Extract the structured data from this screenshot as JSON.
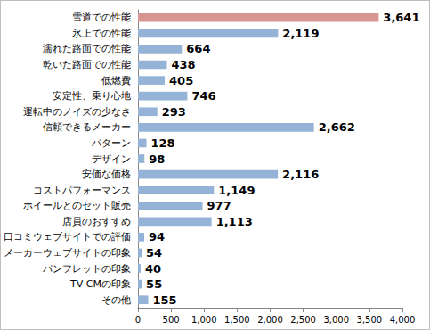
{
  "chart_data": {
    "type": "bar",
    "orientation": "horizontal",
    "categories": [
      "雪道での性能",
      "氷上での性能",
      "濡れた路面での性能",
      "乾いた路面での性能",
      "低燃費",
      "安定性、乗り心地",
      "運転中のノイズの少なさ",
      "信頼できるメーカー",
      "パターン",
      "デザイン",
      "安価な価格",
      "コストパフォーマンス",
      "ホイールとのセット販売",
      "店員のおすすめ",
      "口コミウェブサイトでの評価",
      "メーカーウェブサイトの印象",
      "パンフレットの印象",
      "TV CMの印象",
      "その他"
    ],
    "values": [
      3641,
      2119,
      664,
      438,
      405,
      746,
      293,
      2662,
      128,
      98,
      2116,
      1149,
      977,
      1113,
      94,
      54,
      40,
      55,
      155
    ],
    "value_labels": [
      "3,641",
      "2,119",
      "664",
      "438",
      "405",
      "746",
      "293",
      "2,662",
      "128",
      "98",
      "2,116",
      "1,149",
      "977",
      "1,113",
      "94",
      "54",
      "40",
      "55",
      "155"
    ],
    "colors": [
      "#d99594",
      "#95b3d7",
      "#95b3d7",
      "#95b3d7",
      "#95b3d7",
      "#95b3d7",
      "#95b3d7",
      "#95b3d7",
      "#95b3d7",
      "#95b3d7",
      "#95b3d7",
      "#95b3d7",
      "#95b3d7",
      "#95b3d7",
      "#95b3d7",
      "#95b3d7",
      "#95b3d7",
      "#95b3d7",
      "#95b3d7"
    ],
    "xlim": [
      0,
      4000
    ],
    "xticks": [
      0,
      500,
      {
        "value": 1000,
        "label": "1,000"
      },
      {
        "value": 1500,
        "label": "1,500"
      },
      {
        "value": 2000,
        "label": "2,000"
      },
      {
        "value": 2500,
        "label": "2,500"
      },
      {
        "value": 3000,
        "label": "3,000"
      },
      {
        "value": 3500,
        "label": "3,500"
      },
      {
        "value": 4000,
        "label": "4,000"
      }
    ],
    "grid": false,
    "data_labels": true
  }
}
